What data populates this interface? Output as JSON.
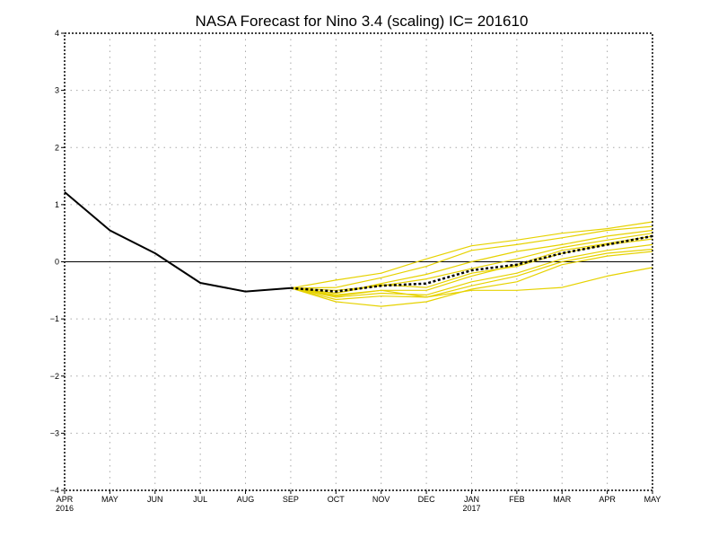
{
  "chart_data": {
    "type": "line",
    "title": "NASA Forecast for Nino 3.4 (scaling) IC= 201610",
    "x_ticks": [
      "APR",
      "MAY",
      "JUN",
      "JUL",
      "AUG",
      "SEP",
      "OCT",
      "NOV",
      "DEC",
      "JAN",
      "FEB",
      "MAR",
      "APR",
      "MAY"
    ],
    "x_year_labels": [
      {
        "index": 0,
        "label": "2016"
      },
      {
        "index": 9,
        "label": "2017"
      }
    ],
    "ylim": [
      -4,
      4
    ],
    "y_ticks": [
      "4",
      "3",
      "2",
      "1",
      "0",
      "−1",
      "−2",
      "−3",
      "−4"
    ],
    "y_tick_values": [
      4,
      3,
      2,
      1,
      0,
      -1,
      -2,
      -3,
      -4
    ],
    "grid": true,
    "zero_line": true,
    "colors": {
      "observed": "#000000",
      "ensemble": "#e6d200",
      "mean": "#000000",
      "grid": "#a8a8a8"
    },
    "series": [
      {
        "role": "observed",
        "x": [
          0,
          1,
          2,
          3,
          4,
          5
        ],
        "values": [
          1.22,
          0.55,
          0.15,
          -0.37,
          -0.52,
          -0.46
        ]
      },
      {
        "role": "ensemble",
        "x": [
          5,
          6,
          7,
          8,
          9,
          10,
          11,
          12,
          13
        ],
        "values": [
          -0.46,
          -0.32,
          -0.2,
          0.05,
          0.28,
          0.38,
          0.5,
          0.58,
          0.7
        ]
      },
      {
        "role": "ensemble",
        "x": [
          5,
          6,
          7,
          8,
          9,
          10,
          11,
          12,
          13
        ],
        "values": [
          -0.46,
          -0.45,
          -0.28,
          -0.08,
          0.2,
          0.3,
          0.42,
          0.55,
          0.62
        ]
      },
      {
        "role": "ensemble",
        "x": [
          5,
          6,
          7,
          8,
          9,
          10,
          11,
          12,
          13
        ],
        "values": [
          -0.46,
          -0.55,
          -0.38,
          -0.22,
          0.0,
          0.18,
          0.3,
          0.45,
          0.55
        ]
      },
      {
        "role": "ensemble",
        "x": [
          5,
          6,
          7,
          8,
          9,
          10,
          11,
          12,
          13
        ],
        "values": [
          -0.46,
          -0.5,
          -0.42,
          -0.3,
          -0.12,
          0.05,
          0.25,
          0.38,
          0.5
        ]
      },
      {
        "role": "ensemble",
        "x": [
          5,
          6,
          7,
          8,
          9,
          10,
          11,
          12,
          13
        ],
        "values": [
          -0.46,
          -0.6,
          -0.5,
          -0.5,
          -0.25,
          -0.05,
          0.2,
          0.32,
          0.45
        ]
      },
      {
        "role": "ensemble",
        "x": [
          5,
          6,
          7,
          8,
          9,
          10,
          11,
          12,
          13
        ],
        "values": [
          -0.46,
          -0.62,
          -0.55,
          -0.58,
          -0.35,
          -0.2,
          0.05,
          0.2,
          0.3
        ]
      },
      {
        "role": "ensemble",
        "x": [
          5,
          6,
          7,
          8,
          9,
          10,
          11,
          12,
          13
        ],
        "values": [
          -0.46,
          -0.66,
          -0.6,
          -0.62,
          -0.42,
          -0.25,
          0.0,
          0.15,
          0.22
        ]
      },
      {
        "role": "ensemble",
        "x": [
          5,
          6,
          7,
          8,
          9,
          10,
          11,
          12,
          13
        ],
        "values": [
          -0.46,
          -0.7,
          -0.78,
          -0.7,
          -0.48,
          -0.35,
          -0.05,
          0.1,
          0.18
        ]
      },
      {
        "role": "ensemble",
        "x": [
          5,
          6,
          7,
          8,
          9,
          10,
          11,
          12,
          13
        ],
        "values": [
          -0.46,
          -0.58,
          -0.5,
          -0.62,
          -0.5,
          -0.5,
          -0.45,
          -0.25,
          -0.1
        ]
      },
      {
        "role": "ensemble",
        "x": [
          5,
          6,
          7,
          8,
          9,
          10,
          11,
          12,
          13
        ],
        "values": [
          -0.46,
          -0.55,
          -0.4,
          -0.45,
          -0.2,
          -0.08,
          0.15,
          0.3,
          0.4
        ]
      },
      {
        "role": "mean",
        "x": [
          5,
          6,
          7,
          8,
          9,
          10,
          11,
          12,
          13
        ],
        "values": [
          -0.46,
          -0.52,
          -0.42,
          -0.38,
          -0.15,
          -0.05,
          0.15,
          0.3,
          0.45
        ]
      }
    ]
  }
}
